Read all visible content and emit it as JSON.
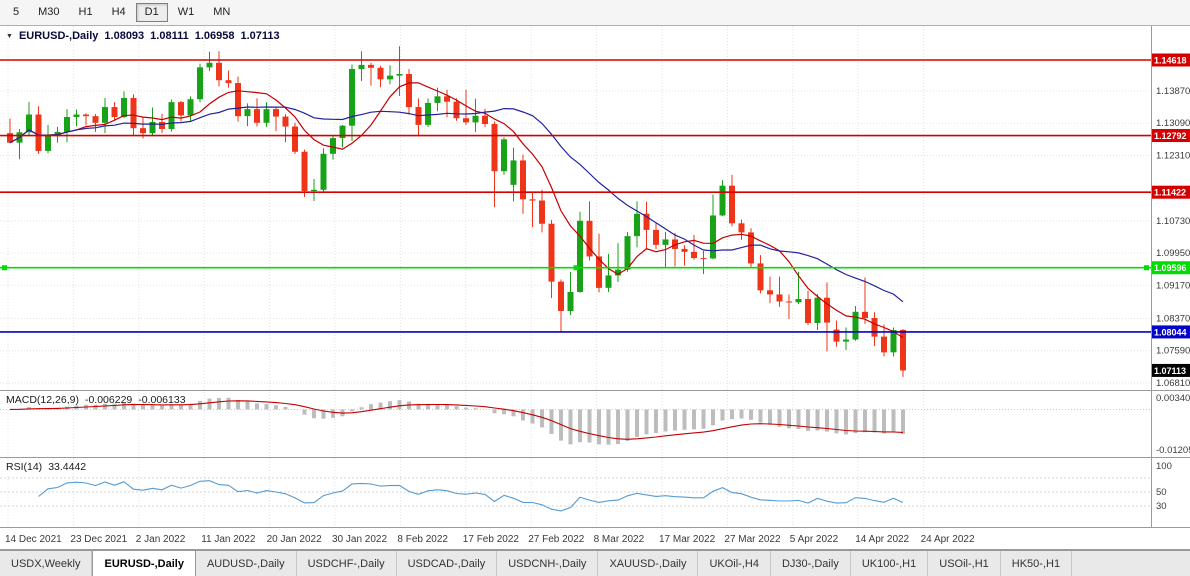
{
  "toolbar": {
    "timeframes": [
      {
        "label": "5",
        "active": false
      },
      {
        "label": "M30",
        "active": false
      },
      {
        "label": "H1",
        "active": false
      },
      {
        "label": "H4",
        "active": false
      },
      {
        "label": "D1",
        "active": true
      },
      {
        "label": "W1",
        "active": false
      },
      {
        "label": "MN",
        "active": false
      }
    ]
  },
  "titlebar": {
    "symbol": "EURUSD-,Daily",
    "open": "1.08093",
    "high": "1.08111",
    "low": "1.06958",
    "close": "1.07113"
  },
  "indicators": {
    "macd": {
      "label": "MACD(12,26,9)",
      "value_main": "-0.006229",
      "value_signal": "-0.006133"
    },
    "rsi": {
      "label": "RSI(14)",
      "value": "33.4442"
    }
  },
  "colors": {
    "candle_up": "#17a217",
    "candle_down": "#ee3419",
    "ma_fast": "#c40000",
    "ma_slow": "#22229e",
    "macd_hist": "#bdbdbd",
    "macd_signal": "#c40000",
    "rsi_line": "#569bd2",
    "grid": "#e2e2e2",
    "axis_text": "#3a3a3a",
    "resistance": "#d40000",
    "support": "#00dd00",
    "bid_line": "#0202c8",
    "current_tag": "#000000"
  },
  "tabs": [
    {
      "label": "USDX,Weekly",
      "active": false
    },
    {
      "label": "EURUSD-,Daily",
      "active": true
    },
    {
      "label": "AUDUSD-,Daily",
      "active": false
    },
    {
      "label": "USDCHF-,Daily",
      "active": false
    },
    {
      "label": "USDCAD-,Daily",
      "active": false
    },
    {
      "label": "USDCNH-,Daily",
      "active": false
    },
    {
      "label": "XAUUSD-,Daily",
      "active": false
    },
    {
      "label": "UKOil-,H4",
      "active": false
    },
    {
      "label": "DJ30-,Daily",
      "active": false
    },
    {
      "label": "UK100-,H1",
      "active": false
    },
    {
      "label": "USOil-,H1",
      "active": false
    },
    {
      "label": "HK50-,H1",
      "active": false
    }
  ],
  "chart_data": {
    "type": "candlestick",
    "title": "EURUSD-,Daily",
    "current_ohlc": {
      "open": 1.08093,
      "high": 1.08111,
      "low": 1.06958,
      "close": 1.07113
    },
    "y_range": [
      1.0664,
      1.1544
    ],
    "y_ticks": [
      "1.13870",
      "1.13090",
      "1.12310",
      "1.10730",
      "1.09950",
      "1.09170",
      "1.08370",
      "1.07590",
      "1.06810"
    ],
    "x_labels": [
      "14 Dec 2021",
      "23 Dec 2021",
      "2 Jan 2022",
      "11 Jan 2022",
      "20 Jan 2022",
      "30 Jan 2022",
      "8 Feb 2022",
      "17 Feb 2022",
      "27 Feb 2022",
      "8 Mar 2022",
      "17 Mar 2022",
      "27 Mar 2022",
      "5 Apr 2022",
      "14 Apr 2022",
      "24 Apr 2022"
    ],
    "candles": [
      [
        1.1285,
        1.132,
        1.126,
        1.1262
      ],
      [
        1.1262,
        1.1295,
        1.1222,
        1.1287
      ],
      [
        1.1287,
        1.136,
        1.128,
        1.133
      ],
      [
        1.133,
        1.135,
        1.1235,
        1.1242
      ],
      [
        1.1242,
        1.1305,
        1.1236,
        1.128
      ],
      [
        1.128,
        1.13,
        1.1262,
        1.1288
      ],
      [
        1.1288,
        1.1343,
        1.1263,
        1.1324
      ],
      [
        1.1324,
        1.1342,
        1.1302,
        1.133
      ],
      [
        1.133,
        1.1333,
        1.1304,
        1.1326
      ],
      [
        1.1326,
        1.1331,
        1.1288,
        1.131
      ],
      [
        1.131,
        1.137,
        1.1285,
        1.1348
      ],
      [
        1.1348,
        1.136,
        1.1316,
        1.1324
      ],
      [
        1.1324,
        1.1386,
        1.1321,
        1.137
      ],
      [
        1.137,
        1.1379,
        1.1279,
        1.1297
      ],
      [
        1.1297,
        1.1323,
        1.1272,
        1.1285
      ],
      [
        1.1285,
        1.1347,
        1.128,
        1.1312
      ],
      [
        1.1312,
        1.1332,
        1.1285,
        1.1295
      ],
      [
        1.1295,
        1.1366,
        1.1289,
        1.136
      ],
      [
        1.136,
        1.1363,
        1.1313,
        1.1328
      ],
      [
        1.1328,
        1.1374,
        1.1314,
        1.1367
      ],
      [
        1.1367,
        1.1453,
        1.136,
        1.1444
      ],
      [
        1.1444,
        1.1482,
        1.1435,
        1.1455
      ],
      [
        1.1455,
        1.1483,
        1.1398,
        1.1413
      ],
      [
        1.1413,
        1.1436,
        1.1395,
        1.1406
      ],
      [
        1.1406,
        1.1422,
        1.1313,
        1.1326
      ],
      [
        1.1326,
        1.1357,
        1.1302,
        1.1343
      ],
      [
        1.1343,
        1.1369,
        1.1301,
        1.131
      ],
      [
        1.131,
        1.136,
        1.13,
        1.1343
      ],
      [
        1.1343,
        1.1349,
        1.129,
        1.1325
      ],
      [
        1.1325,
        1.1331,
        1.1263,
        1.1301
      ],
      [
        1.1301,
        1.131,
        1.1235,
        1.124
      ],
      [
        1.124,
        1.1245,
        1.1131,
        1.1145
      ],
      [
        1.1145,
        1.1174,
        1.1121,
        1.1148
      ],
      [
        1.1148,
        1.1248,
        1.1141,
        1.1235
      ],
      [
        1.1235,
        1.1279,
        1.1221,
        1.1273
      ],
      [
        1.1273,
        1.1305,
        1.125,
        1.1303
      ],
      [
        1.1303,
        1.1451,
        1.1266,
        1.144
      ],
      [
        1.144,
        1.1483,
        1.1411,
        1.145
      ],
      [
        1.145,
        1.1455,
        1.14,
        1.1443
      ],
      [
        1.1443,
        1.1448,
        1.1396,
        1.1415
      ],
      [
        1.1415,
        1.1449,
        1.1403,
        1.1424
      ],
      [
        1.1424,
        1.1495,
        1.1375,
        1.1428
      ],
      [
        1.1428,
        1.144,
        1.133,
        1.1348
      ],
      [
        1.1348,
        1.1369,
        1.1278,
        1.1305
      ],
      [
        1.1305,
        1.1369,
        1.13,
        1.1358
      ],
      [
        1.1358,
        1.1395,
        1.1338,
        1.1374
      ],
      [
        1.1374,
        1.139,
        1.1323,
        1.1361
      ],
      [
        1.1361,
        1.1369,
        1.1315,
        1.1321
      ],
      [
        1.1321,
        1.139,
        1.1305,
        1.1311
      ],
      [
        1.1311,
        1.1368,
        1.1288,
        1.1327
      ],
      [
        1.1327,
        1.1344,
        1.13,
        1.1307
      ],
      [
        1.1307,
        1.1313,
        1.1106,
        1.1193
      ],
      [
        1.1193,
        1.1275,
        1.1184,
        1.127
      ],
      [
        1.116,
        1.125,
        1.112,
        1.1219
      ],
      [
        1.1219,
        1.1233,
        1.109,
        1.1125
      ],
      [
        1.1125,
        1.114,
        1.1058,
        1.1122
      ],
      [
        1.1122,
        1.1148,
        1.1045,
        1.1066
      ],
      [
        1.1066,
        1.1075,
        1.0886,
        1.0926
      ],
      [
        1.0926,
        1.0931,
        1.0805,
        1.0855
      ],
      [
        1.0855,
        1.095,
        1.0845,
        1.0901
      ],
      [
        1.0901,
        1.1095,
        1.0899,
        1.1073
      ],
      [
        1.1073,
        1.112,
        1.0977,
        1.0987
      ],
      [
        1.0987,
        1.1042,
        1.09,
        1.0911
      ],
      [
        1.0911,
        1.0993,
        1.0901,
        1.0941
      ],
      [
        1.0941,
        1.1019,
        1.0925,
        1.0955
      ],
      [
        1.0955,
        1.1046,
        1.095,
        1.1036
      ],
      [
        1.1036,
        1.112,
        1.1009,
        1.109
      ],
      [
        1.109,
        1.1119,
        1.1003,
        1.1051
      ],
      [
        1.1051,
        1.1069,
        1.1005,
        1.1015
      ],
      [
        1.1015,
        1.1046,
        1.0961,
        1.1028
      ],
      [
        1.1028,
        1.1044,
        1.0963,
        1.1005
      ],
      [
        1.1005,
        1.1014,
        1.0965,
        1.0998
      ],
      [
        1.0998,
        1.1039,
        1.0979,
        1.0983
      ],
      [
        1.0983,
        1.1,
        1.0944,
        1.0982
      ],
      [
        1.0982,
        1.1137,
        1.098,
        1.1086
      ],
      [
        1.1086,
        1.1171,
        1.1084,
        1.1158
      ],
      [
        1.1158,
        1.1184,
        1.106,
        1.1067
      ],
      [
        1.1067,
        1.1076,
        1.1027,
        1.1045
      ],
      [
        1.1045,
        1.1055,
        1.096,
        1.097
      ],
      [
        1.097,
        1.099,
        1.0898,
        1.0905
      ],
      [
        1.0905,
        1.0938,
        1.0874,
        1.0895
      ],
      [
        1.0895,
        1.0938,
        1.0865,
        1.0878
      ],
      [
        1.0878,
        1.0895,
        1.0836,
        1.0876
      ],
      [
        1.0876,
        1.095,
        1.0872,
        1.0884
      ],
      [
        1.0884,
        1.0904,
        1.0821,
        1.0826
      ],
      [
        1.0826,
        1.0896,
        1.0809,
        1.0887
      ],
      [
        1.0887,
        1.0924,
        1.0757,
        1.0827
      ],
      [
        1.081,
        1.0832,
        1.0769,
        1.0781
      ],
      [
        1.0781,
        1.0815,
        1.0761,
        1.0786
      ],
      [
        1.0786,
        1.0867,
        1.0783,
        1.0853
      ],
      [
        1.0853,
        1.0936,
        1.0824,
        1.0838
      ],
      [
        1.0838,
        1.0852,
        1.077,
        1.0793
      ],
      [
        1.0793,
        1.0822,
        1.0745,
        1.0755
      ],
      [
        1.0755,
        1.0815,
        1.0745,
        1.0809
      ],
      [
        1.08093,
        1.08111,
        1.06958,
        1.07113
      ]
    ],
    "horizontal_lines": [
      {
        "price": 1.14618,
        "label": "1.14618",
        "type": "resistance",
        "color": "#d40000",
        "selected": false
      },
      {
        "price": 1.12792,
        "label": "1.12792",
        "type": "resistance",
        "color": "#d40000",
        "selected": false
      },
      {
        "price": 1.11422,
        "label": "1.11422",
        "type": "resistance",
        "color": "#d40000",
        "selected": false
      },
      {
        "price": 1.09596,
        "label": "1.09596",
        "type": "support",
        "color": "#00dd00",
        "selected": true
      },
      {
        "price": 1.08044,
        "label": "1.08044",
        "type": "level",
        "color": "#0202c8",
        "selected": false
      }
    ],
    "current_price_tag": {
      "price": 1.07113,
      "label": "1.07113",
      "color": "#000000"
    },
    "overlays": [
      {
        "name": "ma-fast",
        "type": "sma",
        "period": 8,
        "color": "#c40000"
      },
      {
        "name": "ma-slow",
        "type": "sma",
        "period": 20,
        "color": "#22229e"
      }
    ],
    "macd": {
      "params": [
        12,
        26,
        9
      ],
      "main": -0.006229,
      "signal": -0.006133,
      "axis_labels": [
        {
          "text": "0.00340",
          "value": 0.0034
        },
        {
          "text": "-0.01205",
          "value": -0.01205
        }
      ]
    },
    "rsi": {
      "period": 14,
      "value": 33.4442,
      "y_range": [
        0,
        100
      ],
      "levels": [
        30,
        50,
        70
      ],
      "axis_labels": [
        {
          "text": "100",
          "value": 100
        },
        {
          "text": "50",
          "value": 50
        },
        {
          "text": "30",
          "value": 30
        }
      ]
    }
  }
}
